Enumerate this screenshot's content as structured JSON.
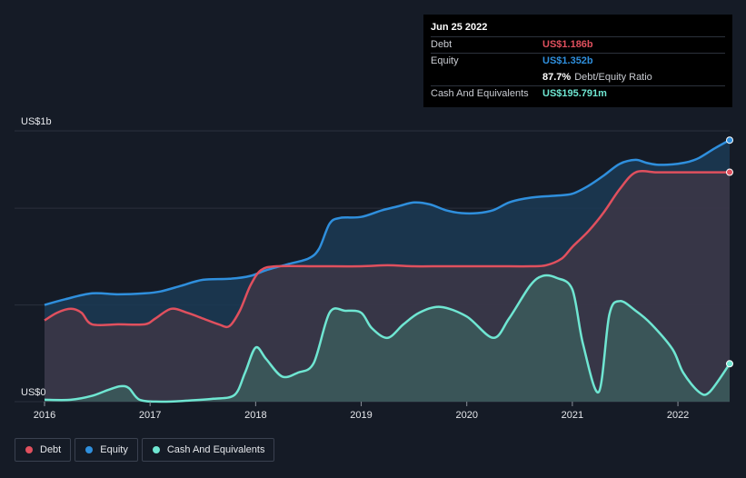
{
  "colors": {
    "debt": "#e0505e",
    "equity": "#2f8fdd",
    "cash": "#6fe6d2",
    "grid": "#2b313d",
    "debt_fill": "#3d3646",
    "equity_fill": "#1b3a55",
    "cash_fill": "#3b5a5c"
  },
  "tooltip": {
    "date": "Jun 25 2022",
    "debt_label": "Debt",
    "debt_value": "US$1.186b",
    "equity_label": "Equity",
    "equity_value": "US$1.352b",
    "ratio_value": "87.7%",
    "ratio_label": "Debt/Equity Ratio",
    "cash_label": "Cash And Equivalents",
    "cash_value": "US$195.791m"
  },
  "legend": {
    "debt": "Debt",
    "equity": "Equity",
    "cash": "Cash And Equivalents"
  },
  "chart_data": {
    "type": "area",
    "title": "",
    "y_top_label": "US$1b",
    "y_bottom_label": "US$0",
    "x_ticks": [
      "2016",
      "2017",
      "2018",
      "2019",
      "2020",
      "2021",
      "2022"
    ],
    "x_tick_values": [
      2016,
      2017,
      2018,
      2019,
      2020,
      2021,
      2022
    ],
    "xlim": [
      2016.0,
      2022.49
    ],
    "ylim": [
      0,
      1.4
    ],
    "series": [
      {
        "name": "Equity",
        "x": [
          2016.0,
          2016.2,
          2016.45,
          2016.7,
          2016.95,
          2017.1,
          2017.3,
          2017.5,
          2017.75,
          2017.95,
          2018.1,
          2018.3,
          2018.5,
          2018.6,
          2018.7,
          2018.8,
          2019.0,
          2019.2,
          2019.35,
          2019.5,
          2019.65,
          2019.8,
          2019.95,
          2020.1,
          2020.25,
          2020.4,
          2020.55,
          2020.7,
          2020.85,
          2021.0,
          2021.15,
          2021.3,
          2021.45,
          2021.6,
          2021.7,
          2021.8,
          2021.9,
          2022.0,
          2022.1,
          2022.2,
          2022.35,
          2022.49
        ],
        "values": [
          0.5,
          0.53,
          0.56,
          0.555,
          0.56,
          0.57,
          0.6,
          0.63,
          0.635,
          0.65,
          0.68,
          0.71,
          0.74,
          0.79,
          0.92,
          0.95,
          0.955,
          0.99,
          1.01,
          1.03,
          1.02,
          0.99,
          0.975,
          0.975,
          0.99,
          1.03,
          1.05,
          1.06,
          1.065,
          1.075,
          1.115,
          1.17,
          1.23,
          1.25,
          1.235,
          1.225,
          1.225,
          1.23,
          1.24,
          1.26,
          1.31,
          1.352
        ]
      },
      {
        "name": "Debt",
        "x": [
          2016.0,
          2016.12,
          2016.25,
          2016.35,
          2016.45,
          2016.7,
          2016.95,
          2017.05,
          2017.2,
          2017.35,
          2017.5,
          2017.65,
          2017.75,
          2017.85,
          2017.95,
          2018.05,
          2018.2,
          2018.6,
          2019.0,
          2019.25,
          2019.5,
          2019.75,
          2020.0,
          2020.3,
          2020.6,
          2020.75,
          2020.9,
          2021.0,
          2021.15,
          2021.3,
          2021.45,
          2021.6,
          2021.8,
          2022.0,
          2022.2,
          2022.49
        ],
        "values": [
          0.42,
          0.46,
          0.48,
          0.46,
          0.4,
          0.4,
          0.4,
          0.43,
          0.48,
          0.46,
          0.43,
          0.4,
          0.39,
          0.47,
          0.6,
          0.68,
          0.7,
          0.7,
          0.7,
          0.705,
          0.7,
          0.7,
          0.7,
          0.7,
          0.7,
          0.705,
          0.74,
          0.8,
          0.88,
          0.98,
          1.1,
          1.186,
          1.186,
          1.186,
          1.186,
          1.186
        ]
      },
      {
        "name": "Cash And Equivalents",
        "x": [
          2016.0,
          2016.25,
          2016.45,
          2016.6,
          2016.72,
          2016.8,
          2016.9,
          2017.1,
          2017.35,
          2017.6,
          2017.8,
          2017.9,
          2018.0,
          2018.1,
          2018.25,
          2018.4,
          2018.55,
          2018.7,
          2018.85,
          2019.0,
          2019.1,
          2019.25,
          2019.4,
          2019.55,
          2019.75,
          2020.0,
          2020.25,
          2020.4,
          2020.6,
          2020.72,
          2020.85,
          2021.0,
          2021.1,
          2021.25,
          2021.35,
          2021.45,
          2021.6,
          2021.75,
          2021.95,
          2022.05,
          2022.2,
          2022.3,
          2022.49
        ],
        "values": [
          0.01,
          0.01,
          0.03,
          0.06,
          0.08,
          0.07,
          0.01,
          0.0,
          0.005,
          0.015,
          0.035,
          0.15,
          0.28,
          0.22,
          0.13,
          0.15,
          0.2,
          0.46,
          0.47,
          0.46,
          0.38,
          0.33,
          0.4,
          0.46,
          0.49,
          0.44,
          0.33,
          0.43,
          0.6,
          0.65,
          0.64,
          0.58,
          0.3,
          0.05,
          0.45,
          0.52,
          0.47,
          0.4,
          0.27,
          0.15,
          0.05,
          0.05,
          0.196
        ]
      }
    ]
  }
}
